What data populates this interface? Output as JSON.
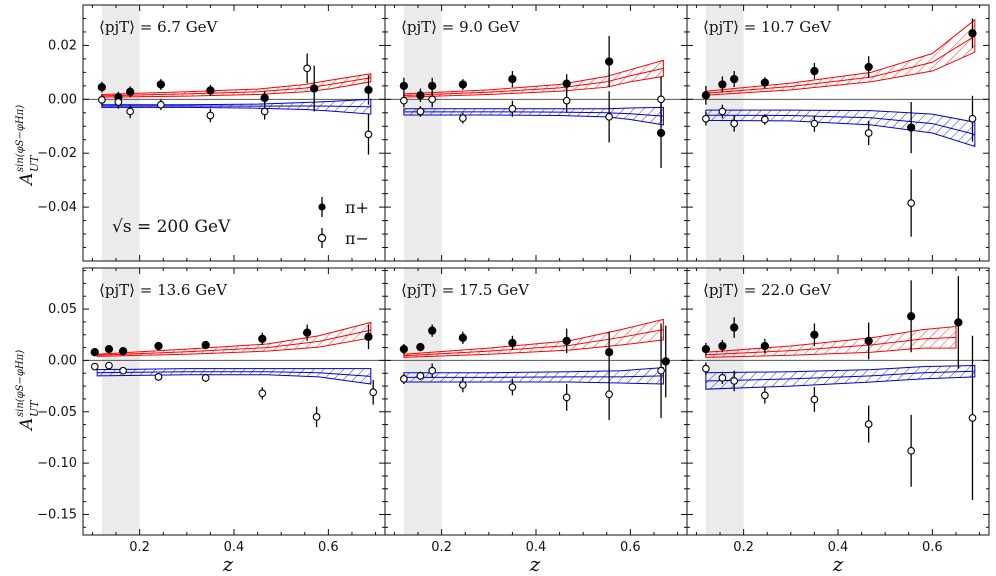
{
  "figure": {
    "ylabel_main": "A",
    "ylabel_sub": "UT",
    "ylabel_sup": "sin(φS−φHπ)",
    "xlabel": "z",
    "energy_label": "√s = 200 GeV",
    "legend": [
      {
        "label": "π+",
        "marker": "filled"
      },
      {
        "label": "π−",
        "marker": "open"
      }
    ],
    "colors": {
      "pi_plus_band": "#ff0000",
      "pi_minus_band": "#0000cc",
      "shade": "#ebebeb",
      "points": "#000000"
    }
  },
  "chart_data": [
    {
      "type": "scatter",
      "title": "⟨pjT⟩ = 6.7 GeV",
      "row": 0,
      "xlim": [
        0.08,
        0.72
      ],
      "ylim": [
        -0.06,
        0.035
      ],
      "xticks": [
        0.2,
        0.4,
        0.6
      ],
      "yticks": [
        0.02,
        0.0,
        -0.02,
        -0.04
      ],
      "ytick_labels": [
        "0.02",
        "0.00",
        "−0.02",
        "−0.04"
      ],
      "shade": [
        0.12,
        0.2
      ],
      "series": [
        {
          "name": "π+",
          "marker": "filled",
          "points": [
            [
              0.12,
              0.0045,
              0.002
            ],
            [
              0.155,
              0.0008,
              0.002
            ],
            [
              0.18,
              0.0028,
              0.002
            ],
            [
              0.245,
              0.0055,
              0.002
            ],
            [
              0.35,
              0.0033,
              0.002
            ],
            [
              0.465,
              0.0005,
              0.0025
            ],
            [
              0.57,
              0.004,
              0.0085
            ],
            [
              0.685,
              0.0035,
              0.0055
            ]
          ]
        },
        {
          "name": "π−",
          "marker": "open",
          "points": [
            [
              0.12,
              -0.0002,
              0.002
            ],
            [
              0.155,
              -0.001,
              0.0025
            ],
            [
              0.18,
              -0.0045,
              0.0025
            ],
            [
              0.245,
              -0.002,
              0.002
            ],
            [
              0.35,
              -0.006,
              0.0025
            ],
            [
              0.465,
              -0.0045,
              0.003
            ],
            [
              0.555,
              0.0115,
              0.0055
            ],
            [
              0.685,
              -0.013,
              0.0075
            ]
          ]
        }
      ],
      "bands": [
        {
          "name": "π+",
          "x": [
            0.12,
            0.3,
            0.45,
            0.55,
            0.6,
            0.69
          ],
          "lo": [
            0.0008,
            0.0012,
            0.0018,
            0.0028,
            0.0038,
            0.0065
          ],
          "hi": [
            0.0018,
            0.0028,
            0.0038,
            0.0055,
            0.007,
            0.0095
          ]
        },
        {
          "name": "π−",
          "x": [
            0.12,
            0.3,
            0.45,
            0.55,
            0.6,
            0.69
          ],
          "lo": [
            -0.003,
            -0.003,
            -0.0033,
            -0.0038,
            -0.0043,
            -0.0055
          ],
          "hi": [
            -0.002,
            -0.002,
            -0.0018,
            -0.0012,
            -0.0008,
            0.0
          ]
        }
      ]
    },
    {
      "type": "scatter",
      "title": "⟨pjT⟩ = 9.0 GeV",
      "row": 0,
      "xlim": [
        0.08,
        0.72
      ],
      "ylim": [
        -0.06,
        0.035
      ],
      "xticks": [
        0.2,
        0.4,
        0.6
      ],
      "yticks": [],
      "ytick_labels": [],
      "shade": [
        0.12,
        0.2
      ],
      "series": [
        {
          "name": "π+",
          "marker": "filled",
          "points": [
            [
              0.12,
              0.005,
              0.003
            ],
            [
              0.155,
              0.0015,
              0.0025
            ],
            [
              0.18,
              0.005,
              0.003
            ],
            [
              0.245,
              0.0055,
              0.002
            ],
            [
              0.35,
              0.0075,
              0.003
            ],
            [
              0.465,
              0.0058,
              0.0035
            ],
            [
              0.555,
              0.014,
              0.0095
            ],
            [
              0.665,
              -0.0125,
              0.013
            ]
          ]
        },
        {
          "name": "π−",
          "marker": "open",
          "points": [
            [
              0.12,
              -0.0005,
              0.0025
            ],
            [
              0.155,
              -0.0045,
              0.002
            ],
            [
              0.18,
              0.0,
              0.003
            ],
            [
              0.245,
              -0.007,
              0.002
            ],
            [
              0.35,
              -0.0035,
              0.003
            ],
            [
              0.465,
              -0.0005,
              0.0045
            ],
            [
              0.555,
              -0.0065,
              0.0095
            ],
            [
              0.665,
              0.0,
              0.0085
            ]
          ]
        }
      ],
      "bands": [
        {
          "name": "π+",
          "x": [
            0.12,
            0.3,
            0.45,
            0.55,
            0.6,
            0.67
          ],
          "lo": [
            0.0008,
            0.0018,
            0.003,
            0.0045,
            0.0065,
            0.0085
          ],
          "hi": [
            0.002,
            0.0035,
            0.0055,
            0.0085,
            0.011,
            0.0145
          ]
        },
        {
          "name": "π−",
          "x": [
            0.12,
            0.3,
            0.45,
            0.55,
            0.6,
            0.67
          ],
          "lo": [
            -0.0058,
            -0.0058,
            -0.006,
            -0.0065,
            -0.0075,
            -0.0095
          ],
          "hi": [
            -0.0035,
            -0.0035,
            -0.0035,
            -0.0035,
            -0.0032,
            -0.003
          ]
        }
      ]
    },
    {
      "type": "scatter",
      "title": "⟨pjT⟩ = 10.7 GeV",
      "row": 0,
      "xlim": [
        0.08,
        0.72
      ],
      "ylim": [
        -0.06,
        0.035
      ],
      "xticks": [
        0.2,
        0.4,
        0.6
      ],
      "yticks": [],
      "ytick_labels": [],
      "shade": [
        0.12,
        0.2
      ],
      "series": [
        {
          "name": "π+",
          "marker": "filled",
          "points": [
            [
              0.12,
              0.0015,
              0.0035
            ],
            [
              0.155,
              0.0055,
              0.003
            ],
            [
              0.18,
              0.0075,
              0.003
            ],
            [
              0.245,
              0.0062,
              0.002
            ],
            [
              0.35,
              0.0105,
              0.003
            ],
            [
              0.465,
              0.012,
              0.004
            ],
            [
              0.555,
              -0.0105,
              0.0095
            ],
            [
              0.685,
              0.0245,
              0.0055
            ]
          ]
        },
        {
          "name": "π−",
          "marker": "open",
          "points": [
            [
              0.12,
              -0.0072,
              0.0025
            ],
            [
              0.155,
              -0.0045,
              0.0025
            ],
            [
              0.18,
              -0.009,
              0.003
            ],
            [
              0.245,
              -0.0075,
              0.002
            ],
            [
              0.35,
              -0.009,
              0.003
            ],
            [
              0.465,
              -0.0125,
              0.0045
            ],
            [
              0.555,
              -0.0385,
              0.0125
            ],
            [
              0.685,
              -0.0072,
              0.0085
            ]
          ]
        }
      ],
      "bands": [
        {
          "name": "π+",
          "x": [
            0.12,
            0.3,
            0.47,
            0.6,
            0.69
          ],
          "lo": [
            0.0015,
            0.0035,
            0.0065,
            0.0105,
            0.0175
          ],
          "hi": [
            0.003,
            0.006,
            0.01,
            0.017,
            0.0295
          ]
        },
        {
          "name": "π−",
          "x": [
            0.12,
            0.3,
            0.47,
            0.6,
            0.69
          ],
          "lo": [
            -0.0078,
            -0.008,
            -0.0095,
            -0.0125,
            -0.0175
          ],
          "hi": [
            -0.004,
            -0.004,
            -0.0042,
            -0.0055,
            -0.0085
          ]
        }
      ]
    },
    {
      "type": "scatter",
      "title": "⟨pjT⟩ = 13.6 GeV",
      "row": 1,
      "xlim": [
        0.08,
        0.72
      ],
      "ylim": [
        -0.17,
        0.09
      ],
      "xticks": [
        0.2,
        0.4,
        0.6
      ],
      "yticks": [
        0.05,
        0.0,
        -0.05,
        -0.1,
        -0.15
      ],
      "ytick_labels": [
        "0.05",
        "0.00",
        "−0.05",
        "−0.10",
        "−0.15"
      ],
      "shade": [
        0.12,
        0.2
      ],
      "series": [
        {
          "name": "π+",
          "marker": "filled",
          "points": [
            [
              0.105,
              0.008,
              0.003
            ],
            [
              0.135,
              0.011,
              0.003
            ],
            [
              0.165,
              0.009,
              0.003
            ],
            [
              0.24,
              0.014,
              0.003
            ],
            [
              0.34,
              0.015,
              0.003
            ],
            [
              0.46,
              0.021,
              0.006
            ],
            [
              0.555,
              0.027,
              0.008
            ],
            [
              0.685,
              0.023,
              0.012
            ]
          ]
        },
        {
          "name": "π−",
          "marker": "open",
          "points": [
            [
              0.105,
              -0.006,
              0.003
            ],
            [
              0.135,
              -0.005,
              0.003
            ],
            [
              0.165,
              -0.01,
              0.003
            ],
            [
              0.24,
              -0.016,
              0.003
            ],
            [
              0.34,
              -0.017,
              0.004
            ],
            [
              0.46,
              -0.032,
              0.006
            ],
            [
              0.575,
              -0.055,
              0.01
            ],
            [
              0.695,
              -0.031,
              0.012
            ]
          ]
        }
      ],
      "bands": [
        {
          "name": "π+",
          "x": [
            0.11,
            0.3,
            0.47,
            0.58,
            0.69
          ],
          "lo": [
            0.004,
            0.006,
            0.009,
            0.013,
            0.022
          ],
          "hi": [
            0.006,
            0.011,
            0.016,
            0.024,
            0.037
          ]
        },
        {
          "name": "π−",
          "x": [
            0.11,
            0.3,
            0.47,
            0.58,
            0.69
          ],
          "lo": [
            -0.015,
            -0.014,
            -0.014,
            -0.016,
            -0.023
          ],
          "hi": [
            -0.009,
            -0.008,
            -0.008,
            -0.008,
            -0.008
          ]
        }
      ]
    },
    {
      "type": "scatter",
      "title": "⟨pjT⟩ = 17.5 GeV",
      "row": 1,
      "xlim": [
        0.08,
        0.72
      ],
      "ylim": [
        -0.17,
        0.09
      ],
      "xticks": [
        0.2,
        0.4,
        0.6
      ],
      "yticks": [],
      "ytick_labels": [],
      "shade": [
        0.12,
        0.2
      ],
      "series": [
        {
          "name": "π+",
          "marker": "filled",
          "points": [
            [
              0.12,
              0.011,
              0.005
            ],
            [
              0.155,
              0.013,
              0.004
            ],
            [
              0.18,
              0.029,
              0.006
            ],
            [
              0.245,
              0.022,
              0.006
            ],
            [
              0.35,
              0.017,
              0.007
            ],
            [
              0.465,
              0.019,
              0.012
            ],
            [
              0.555,
              0.008,
              0.02
            ],
            [
              0.675,
              -0.001,
              0.035
            ]
          ]
        },
        {
          "name": "π−",
          "marker": "open",
          "points": [
            [
              0.12,
              -0.018,
              0.005
            ],
            [
              0.155,
              -0.015,
              0.004
            ],
            [
              0.18,
              -0.01,
              0.007
            ],
            [
              0.245,
              -0.024,
              0.007
            ],
            [
              0.35,
              -0.026,
              0.008
            ],
            [
              0.465,
              -0.036,
              0.013
            ],
            [
              0.555,
              -0.033,
              0.025
            ],
            [
              0.665,
              -0.01,
              0.046
            ]
          ]
        }
      ],
      "bands": [
        {
          "name": "π+",
          "x": [
            0.12,
            0.3,
            0.47,
            0.58,
            0.67
          ],
          "lo": [
            0.003,
            0.006,
            0.01,
            0.015,
            0.02
          ],
          "hi": [
            0.006,
            0.012,
            0.019,
            0.03,
            0.04
          ]
        },
        {
          "name": "π−",
          "x": [
            0.12,
            0.3,
            0.47,
            0.58,
            0.67
          ],
          "lo": [
            -0.021,
            -0.021,
            -0.021,
            -0.022,
            -0.023
          ],
          "hi": [
            -0.012,
            -0.012,
            -0.011,
            -0.01,
            -0.007
          ]
        }
      ]
    },
    {
      "type": "scatter",
      "title": "⟨pjT⟩ = 22.0 GeV",
      "row": 1,
      "xlim": [
        0.08,
        0.72
      ],
      "ylim": [
        -0.17,
        0.09
      ],
      "xticks": [
        0.2,
        0.4,
        0.6
      ],
      "yticks": [],
      "ytick_labels": [],
      "shade": [
        0.12,
        0.2
      ],
      "series": [
        {
          "name": "π+",
          "marker": "filled",
          "points": [
            [
              0.12,
              0.011,
              0.006
            ],
            [
              0.155,
              0.014,
              0.006
            ],
            [
              0.18,
              0.032,
              0.01
            ],
            [
              0.245,
              0.014,
              0.007
            ],
            [
              0.35,
              0.025,
              0.011
            ],
            [
              0.465,
              0.019,
              0.018
            ],
            [
              0.555,
              0.043,
              0.035
            ],
            [
              0.655,
              0.037,
              0.045
            ]
          ]
        },
        {
          "name": "π−",
          "marker": "open",
          "points": [
            [
              0.12,
              -0.008,
              0.006
            ],
            [
              0.155,
              -0.017,
              0.006
            ],
            [
              0.18,
              -0.02,
              0.01
            ],
            [
              0.245,
              -0.034,
              0.008
            ],
            [
              0.35,
              -0.038,
              0.012
            ],
            [
              0.465,
              -0.062,
              0.018
            ],
            [
              0.555,
              -0.088,
              0.035
            ],
            [
              0.685,
              -0.056,
              0.08
            ]
          ]
        }
      ],
      "bands": [
        {
          "name": "π+",
          "x": [
            0.12,
            0.3,
            0.47,
            0.58,
            0.65
          ],
          "lo": [
            0.003,
            0.005,
            0.008,
            0.012,
            0.012
          ],
          "hi": [
            0.008,
            0.014,
            0.022,
            0.03,
            0.033
          ]
        },
        {
          "name": "π−",
          "x": [
            0.12,
            0.3,
            0.47,
            0.58,
            0.69
          ],
          "lo": [
            -0.028,
            -0.025,
            -0.021,
            -0.018,
            -0.016
          ],
          "hi": [
            -0.012,
            -0.011,
            -0.009,
            -0.006,
            -0.005
          ]
        }
      ]
    }
  ]
}
